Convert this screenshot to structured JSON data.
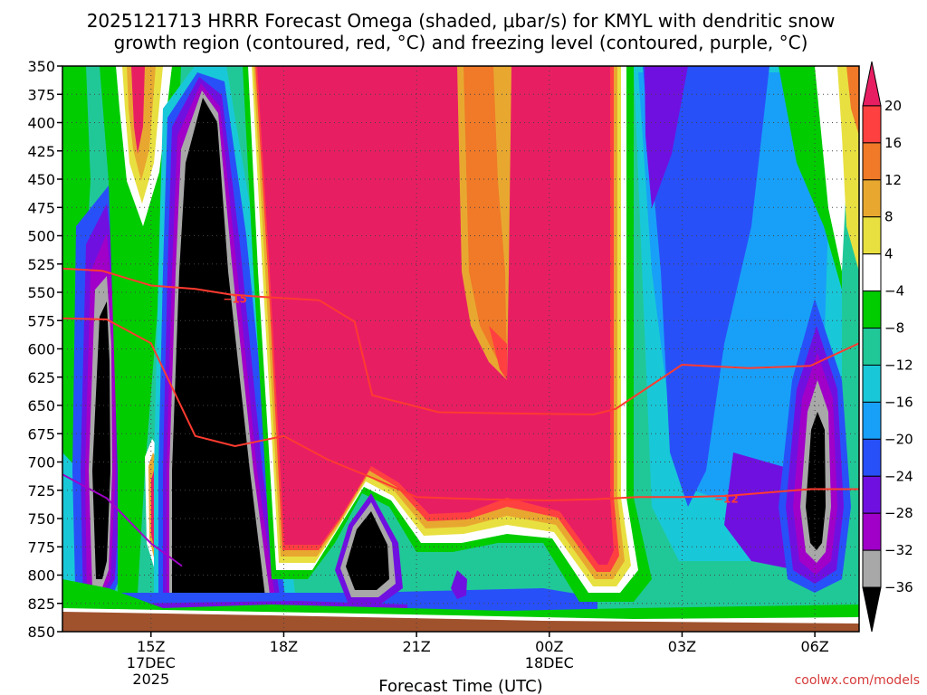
{
  "chart_data": {
    "type": "heatmap",
    "title_line1": "2025121713 HRRR Forecast Omega (shaded, μbar/s) for KMYL with dendritic snow",
    "title_line2": "growth region (contoured, red, °C) and freezing level (contoured, purple, °C)",
    "xlabel": "Forecast Time (UTC)",
    "credit": "coolwx.com/models",
    "x_range_hours": [
      13,
      31
    ],
    "y_range_hPa": [
      350,
      850
    ],
    "y_ticks": [
      350,
      375,
      400,
      425,
      450,
      475,
      500,
      525,
      550,
      575,
      600,
      625,
      650,
      675,
      700,
      725,
      750,
      775,
      800,
      825,
      850
    ],
    "x_ticks": [
      {
        "hour": 15,
        "label": "15Z",
        "sub1": "17DEC",
        "sub2": "2025"
      },
      {
        "hour": 18,
        "label": "18Z"
      },
      {
        "hour": 21,
        "label": "21Z"
      },
      {
        "hour": 24,
        "label": "00Z",
        "sub1": "18DEC"
      },
      {
        "hour": 27,
        "label": "03Z"
      },
      {
        "hour": 30,
        "label": "06Z"
      }
    ],
    "colorbar": {
      "levels": [
        20,
        16,
        12,
        8,
        4,
        -4,
        -8,
        -12,
        -16,
        -20,
        -24,
        -28,
        -32,
        -36
      ],
      "labels": [
        "20",
        "16",
        "12",
        "8",
        "4",
        "−4",
        "−8",
        "−12",
        "−16",
        "−20",
        "−24",
        "−28",
        "−32",
        "−36"
      ],
      "colors": [
        "#e81e63",
        "#ff4040",
        "#f07a28",
        "#e8a830",
        "#e8e040",
        "#ffffff",
        "#00cc00",
        "#20c898",
        "#18c8d8",
        "#18a0f8",
        "#2850f8",
        "#7010e0",
        "#a000c8",
        "#a8a8a8",
        "#000000"
      ]
    },
    "dendritic_contours": [
      {
        "label": "−15",
        "label_hour": 16.9,
        "label_p": 559,
        "points": [
          [
            13,
            529
          ],
          [
            13.9,
            531
          ],
          [
            15.0,
            544
          ],
          [
            16.0,
            547
          ],
          [
            16.8,
            552
          ],
          [
            17.5,
            554
          ],
          [
            18.8,
            557
          ],
          [
            19.6,
            576
          ],
          [
            20.0,
            641
          ],
          [
            21.5,
            656
          ],
          [
            23.0,
            657
          ],
          [
            25.0,
            658
          ],
          [
            25.5,
            653
          ],
          [
            27.0,
            614
          ],
          [
            28.5,
            617
          ],
          [
            29.9,
            615
          ],
          [
            31,
            595
          ]
        ]
      },
      {
        "label": "−12",
        "label_hour": 28.0,
        "label_p": 736,
        "points": [
          [
            13,
            573
          ],
          [
            14.0,
            574
          ],
          [
            15.0,
            595
          ],
          [
            16.0,
            677
          ],
          [
            16.9,
            686
          ],
          [
            18.0,
            677
          ],
          [
            19.0,
            698
          ],
          [
            20.0,
            714
          ],
          [
            21.0,
            731
          ],
          [
            22.5,
            733
          ],
          [
            24.0,
            734
          ],
          [
            25.0,
            733
          ],
          [
            26.0,
            731
          ],
          [
            27.0,
            731
          ],
          [
            28.0,
            730
          ],
          [
            29.9,
            724
          ],
          [
            31,
            724
          ]
        ]
      }
    ],
    "freezing_contour": {
      "points": [
        [
          13,
          711
        ],
        [
          14.0,
          732
        ],
        [
          15.0,
          772
        ],
        [
          15.7,
          792
        ]
      ]
    }
  }
}
